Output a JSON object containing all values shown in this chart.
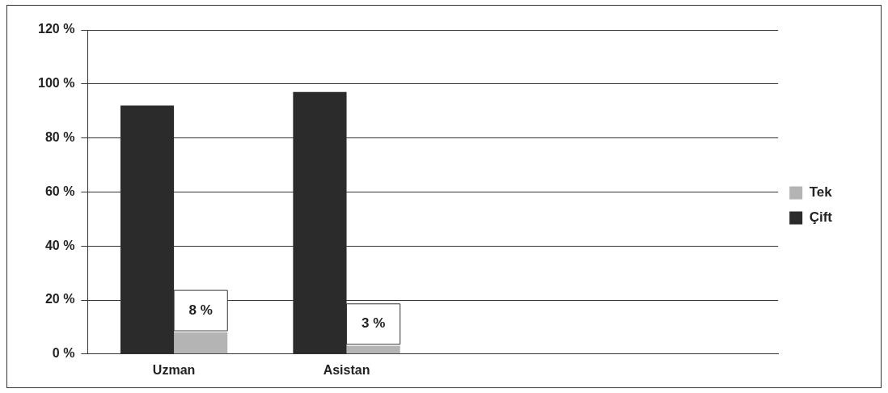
{
  "chart_data": {
    "type": "bar",
    "categories": [
      "Uzman",
      "Asistan",
      null,
      null
    ],
    "series": [
      {
        "name": "Çift",
        "color": "#2b2b2b",
        "values": [
          92,
          97,
          null,
          null
        ]
      },
      {
        "name": "Tek",
        "color": "#b4b4b4",
        "values": [
          8,
          3,
          null,
          null
        ],
        "value_labels": [
          "8 %",
          "3 %",
          null,
          null
        ]
      }
    ],
    "ylim": [
      0,
      120
    ],
    "yticks": [
      {
        "value": 0,
        "label": "0 %"
      },
      {
        "value": 20,
        "label": "20 %"
      },
      {
        "value": 40,
        "label": "40 %"
      },
      {
        "value": 60,
        "label": "60 %"
      },
      {
        "value": 80,
        "label": "80 %"
      },
      {
        "value": 100,
        "label": "100 %"
      },
      {
        "value": 120,
        "label": "120 %"
      }
    ],
    "grid": "y",
    "legend": "right"
  }
}
